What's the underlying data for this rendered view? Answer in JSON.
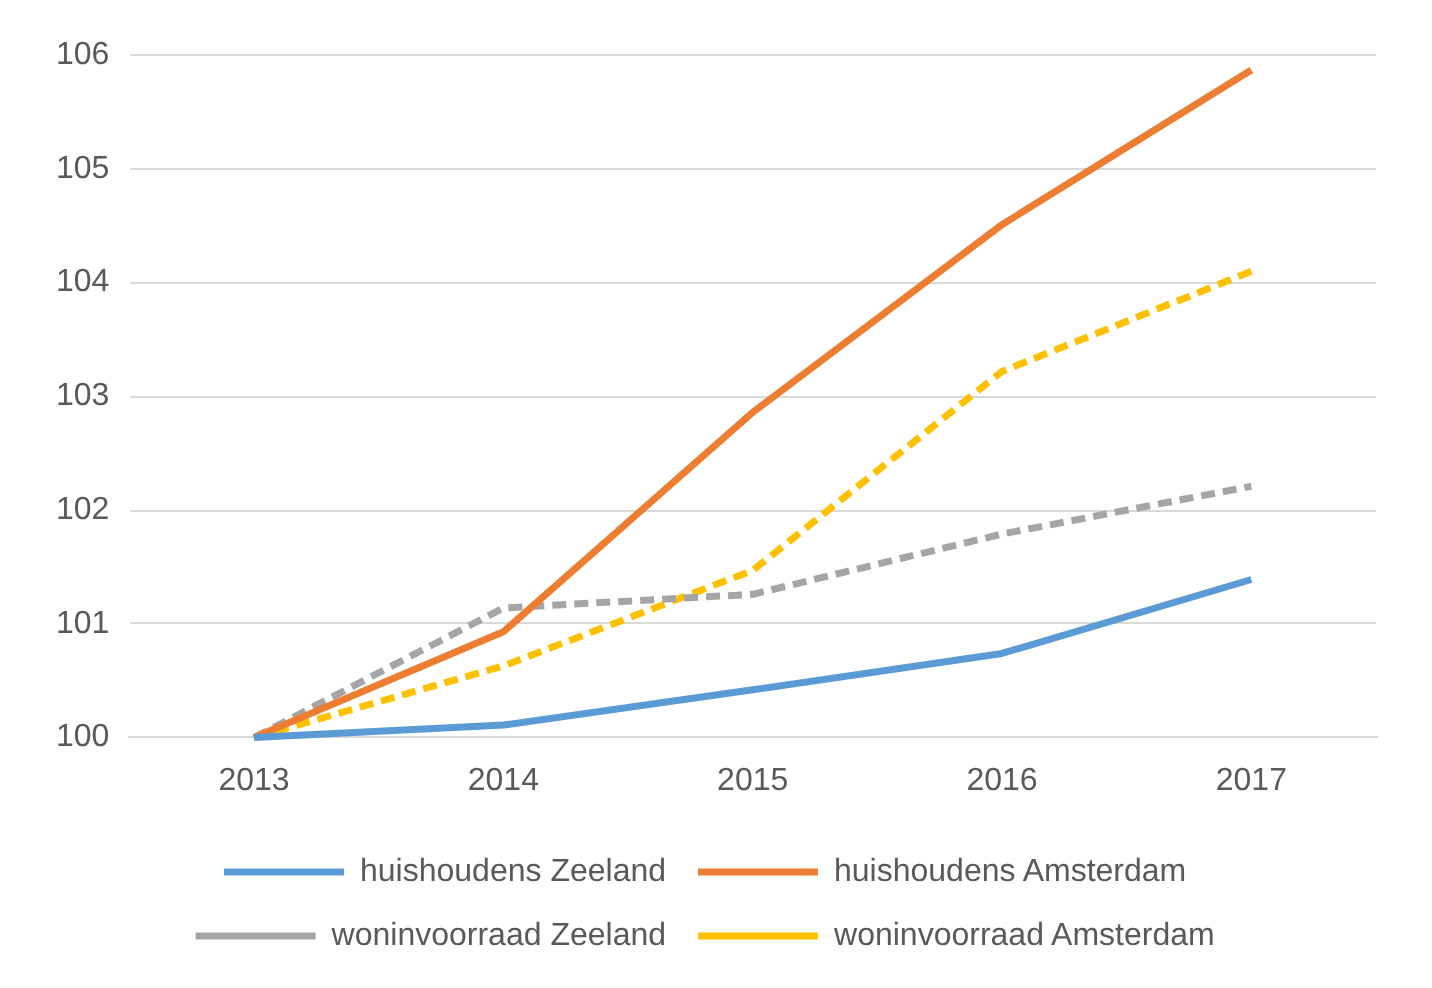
{
  "chart_data": {
    "type": "line",
    "categories": [
      "2013",
      "2014",
      "2015",
      "2016",
      "2017"
    ],
    "series": [
      {
        "name": "huishoudens Zeeland",
        "color": "#5b9bd5",
        "line_style": "solid",
        "values": [
          100,
          100.11,
          100.42,
          100.74,
          101.39
        ]
      },
      {
        "name": "huishoudens Amsterdam",
        "color": "#ed7d31",
        "line_style": "solid",
        "values": [
          100,
          100.93,
          102.86,
          104.51,
          105.87
        ]
      },
      {
        "name": "woninvoorraad Zeeland",
        "color": "#a5a5a5",
        "line_style": "dashed",
        "values": [
          100,
          101.14,
          101.26,
          101.79,
          102.21
        ]
      },
      {
        "name": "woninvoorraad Amsterdam",
        "color": "#ffc000",
        "line_style": "dashed",
        "values": [
          100,
          100.63,
          101.47,
          103.22,
          104.1
        ]
      }
    ],
    "ylim": [
      100,
      106
    ],
    "yticks": [
      100,
      101,
      102,
      103,
      104,
      105,
      106
    ],
    "grid": "y",
    "legend": "bottom",
    "marker": "none"
  }
}
